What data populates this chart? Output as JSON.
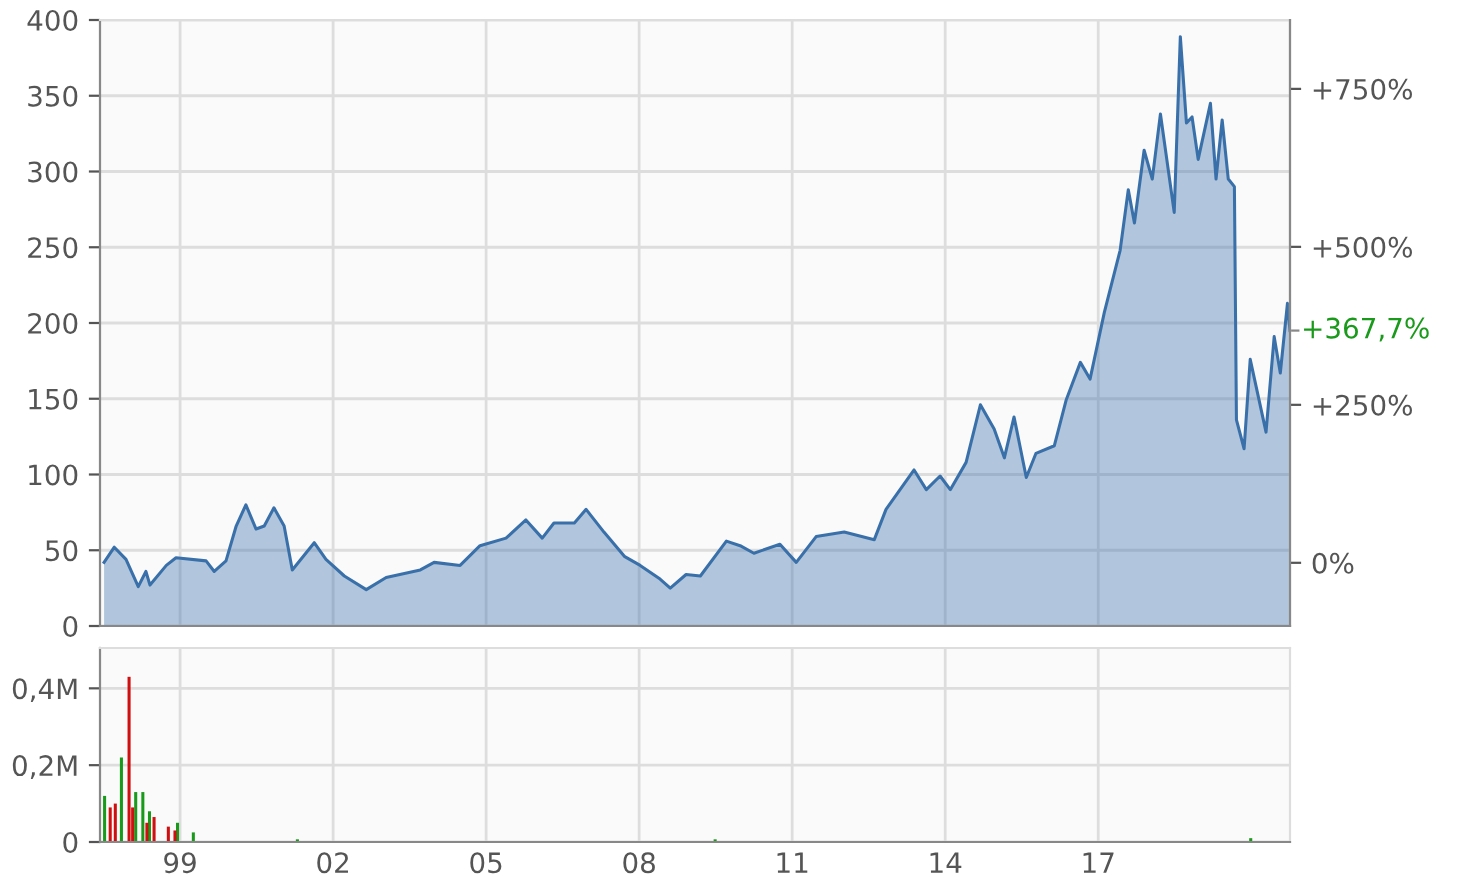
{
  "chart_data": [
    {
      "type": "area",
      "color": "#3a70aa",
      "x": [
        1997.51,
        1997.71,
        1997.94,
        1998.18,
        1998.33,
        1998.41,
        1998.73,
        1998.92,
        1999.51,
        1999.67,
        1999.9,
        2000.1,
        2000.29,
        2000.49,
        2000.65,
        2000.84,
        2001.04,
        2001.2,
        2001.63,
        2001.86,
        2002.22,
        2002.65,
        2003.04,
        2003.71,
        2003.98,
        2004.49,
        2004.88,
        2005.39,
        2005.78,
        2006.1,
        2006.33,
        2006.73,
        2006.96,
        2007.31,
        2007.71,
        2008.02,
        2008.41,
        2008.61,
        2008.92,
        2009.2,
        2009.71,
        2009.98,
        2010.25,
        2010.76,
        2011.08,
        2011.47,
        2012.02,
        2012.61,
        2012.84,
        2013.39,
        2013.63,
        2013.9,
        2014.1,
        2014.41,
        2014.69,
        2014.96,
        2015.16,
        2015.35,
        2015.59,
        2015.78,
        2016.14,
        2016.37,
        2016.65,
        2016.84,
        2017.12,
        2017.43,
        2017.59,
        2017.71,
        2017.9,
        2018.06,
        2018.22,
        2018.49,
        2018.61,
        2018.73,
        2018.84,
        2018.96,
        2019.2,
        2019.31,
        2019.43,
        2019.55,
        2019.67,
        2019.71,
        2019.86,
        2019.98,
        2020.29,
        2020.45,
        2020.57,
        2020.71,
        2020.76
      ],
      "values": [
        42,
        52,
        44,
        26,
        36,
        27,
        40,
        45,
        43,
        36,
        43,
        66,
        80,
        64,
        66,
        78,
        66,
        37,
        55,
        44,
        33,
        24,
        32,
        37,
        42,
        40,
        53,
        58,
        70,
        58,
        68,
        68,
        77,
        62,
        46,
        40,
        31,
        25,
        34,
        33,
        56,
        53,
        48,
        54,
        42,
        59,
        62,
        57,
        77,
        103,
        90,
        99,
        90,
        108,
        146,
        130,
        111,
        138,
        98,
        114,
        119,
        149,
        174,
        163,
        207,
        248,
        288,
        266,
        314,
        295,
        338,
        273,
        389,
        332,
        336,
        308,
        345,
        295,
        334,
        295,
        290,
        136,
        117,
        176,
        128,
        191,
        167,
        213,
        195
      ],
      "xlim": [
        1997.43,
        2020.76
      ],
      "xticks": [
        {
          "value": 1999,
          "label": null
        },
        {
          "value": 2002,
          "label": null
        },
        {
          "value": 2005,
          "label": null
        },
        {
          "value": 2008,
          "label": null
        },
        {
          "value": 2011,
          "label": null
        },
        {
          "value": 2014,
          "label": null
        },
        {
          "value": 2017,
          "label": null
        }
      ],
      "ylim": [
        0,
        400
      ],
      "yticks": [
        0,
        50,
        100,
        150,
        200,
        250,
        300,
        350,
        400
      ],
      "y2lim": [
        -100,
        859
      ],
      "y2ticks": [
        {
          "value": 0,
          "label": "0%"
        },
        {
          "value": 250,
          "label": "+250%"
        },
        {
          "value": 500,
          "label": "+500%"
        },
        {
          "value": 750,
          "label": "+750%"
        }
      ],
      "annotations": [
        {
          "text": "+367,7%",
          "x": 2020.76,
          "y": 195
        }
      ],
      "grid": true,
      "tick_labels": "y"
    },
    {
      "type": "bar",
      "series": [
        {
          "color": "#1a9a1a",
          "x": [
            1997.52,
            1997.85,
            1998.13,
            1998.27,
            1998.4,
            1998.95,
            1999.26,
            2001.3,
            2009.49,
            2019.99
          ],
          "values": [
            0.12,
            0.22,
            0.13,
            0.13,
            0.08,
            0.05,
            0.025,
            0.007,
            0.007,
            0.01
          ]
        },
        {
          "color": "#d01010",
          "x": [
            1997.63,
            1997.73,
            1998.0,
            1998.07,
            1998.35,
            1998.49,
            1998.77,
            1998.9
          ],
          "values": [
            0.09,
            0.1,
            0.43,
            0.09,
            0.05,
            0.065,
            0.04,
            0.03
          ]
        }
      ],
      "xlim": [
        1997.43,
        2020.76
      ],
      "xticks": [
        {
          "value": 1999,
          "label": "99"
        },
        {
          "value": 2002,
          "label": "02"
        },
        {
          "value": 2005,
          "label": "05"
        },
        {
          "value": 2008,
          "label": "08"
        },
        {
          "value": 2011,
          "label": "11"
        },
        {
          "value": 2014,
          "label": "14"
        },
        {
          "value": 2017,
          "label": "17"
        }
      ],
      "ylim": [
        0,
        0.505
      ],
      "yticks": [
        0,
        {
          "value": 0.2,
          "label": "0,2M"
        },
        {
          "value": 0.4,
          "label": "0,4M"
        }
      ],
      "grid": true
    }
  ]
}
